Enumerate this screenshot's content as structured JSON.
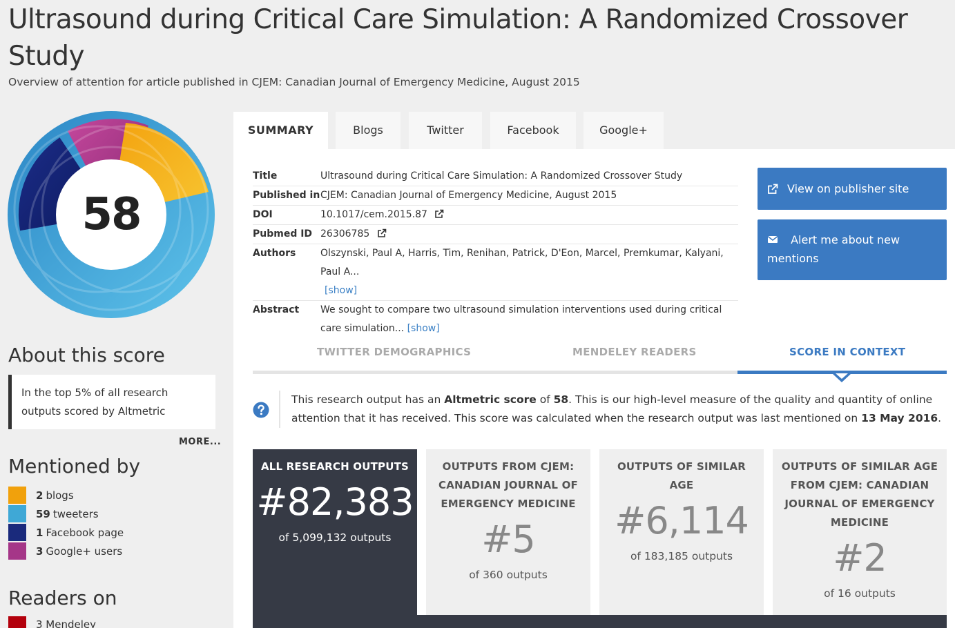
{
  "page": {
    "title": "Ultrasound during Critical Care Simulation: A Randomized Crossover Study",
    "subtitle": "Overview of attention for article published in CJEM: Canadian Journal of Emergency Medicine, August 2015"
  },
  "score": {
    "value": "58",
    "ring_colors": [
      "#f1a10c",
      "#3fa8d6",
      "#1a2a7c",
      "#a53688"
    ]
  },
  "about": {
    "heading": "About this score",
    "text": "In the top 5% of all research outputs scored by Altmetric",
    "more": "MORE..."
  },
  "mentioned": {
    "heading": "Mentioned by",
    "items": [
      {
        "count": "2",
        "label": "blogs",
        "color": "#f1a10c"
      },
      {
        "count": "59",
        "label": "tweeters",
        "color": "#3fa8d6"
      },
      {
        "count": "1",
        "label": "Facebook page",
        "color": "#1a2a7c"
      },
      {
        "count": "3",
        "label": "Google+ users",
        "color": "#a53688"
      }
    ]
  },
  "readers": {
    "heading": "Readers on",
    "item": "3 Mendeley"
  },
  "tabs": [
    {
      "label": "SUMMARY"
    },
    {
      "label": "Blogs"
    },
    {
      "label": "Twitter"
    },
    {
      "label": "Facebook"
    },
    {
      "label": "Google+"
    }
  ],
  "details": {
    "title_label": "Title",
    "title_value": "Ultrasound during Critical Care Simulation: A Randomized Crossover Study",
    "published_label": "Published in",
    "published_value": "CJEM: Canadian Journal of Emergency Medicine, August 2015",
    "doi_label": "DOI",
    "doi_value": "10.1017/cem.2015.87",
    "pubmed_label": "Pubmed ID",
    "pubmed_value": "26306785",
    "authors_label": "Authors",
    "authors_value": "Olszynski, Paul A, Harris, Tim, Renihan, Patrick, D'Eon, Marcel, Premkumar, Kalyani, Paul A...",
    "authors_show": "[show]",
    "abstract_label": "Abstract",
    "abstract_value": "We sought to compare two ultrasound simulation interventions used during critical care simulation...",
    "abstract_show": "[show]"
  },
  "buttons": {
    "publisher": "View on publisher site",
    "alert": "Alert me about new mentions"
  },
  "subtabs": [
    {
      "label": "TWITTER DEMOGRAPHICS"
    },
    {
      "label": "MENDELEY READERS"
    },
    {
      "label": "SCORE IN CONTEXT"
    }
  ],
  "context": {
    "t1": "This research output has an ",
    "t2": "Altmetric score",
    "t3": " of ",
    "t4": "58",
    "t5": ". This is our high-level measure of the quality and quantity of online attention that it has received. This score was calculated when the research output was last mentioned on ",
    "t6": "13 May 2016",
    "t7": "."
  },
  "boxes": [
    {
      "label": "ALL RESEARCH OUTPUTS",
      "rank": "#82,383",
      "of": "of 5,099,132 outputs"
    },
    {
      "label": "OUTPUTS FROM CJEM: CANADIAN JOURNAL OF EMERGENCY MEDICINE",
      "rank": "#5",
      "of": "of 360 outputs"
    },
    {
      "label": "OUTPUTS OF SIMILAR AGE",
      "rank": "#6,114",
      "of": "of 183,185 outputs"
    },
    {
      "label": "OUTPUTS OF SIMILAR AGE FROM CJEM: CANADIAN JOURNAL OF EMERGENCY MEDICINE",
      "rank": "#2",
      "of": "of 16 outputs"
    }
  ]
}
